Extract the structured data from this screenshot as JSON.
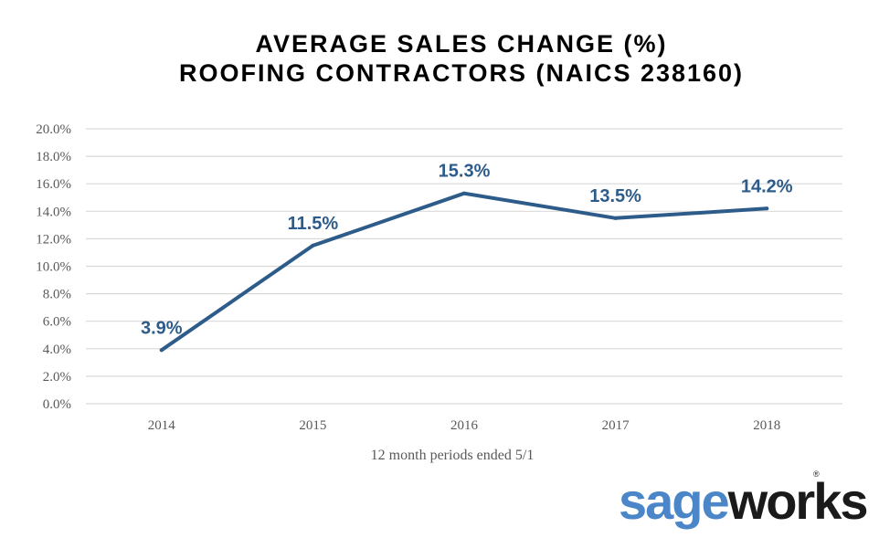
{
  "chart_data": {
    "type": "line",
    "title": [
      "AVERAGE SALES CHANGE (%)",
      "ROOFING CONTRACTORS (NAICS 238160)"
    ],
    "xlabel": "12 month  periods ended 5/1",
    "ylabel": "",
    "categories": [
      "2014",
      "2015",
      "2016",
      "2017",
      "2018"
    ],
    "series": [
      {
        "values": [
          3.9,
          11.5,
          15.3,
          13.5,
          14.2
        ],
        "data_labels": [
          "3.9%",
          "11.5%",
          "15.3%",
          "13.5%",
          "14.2%"
        ]
      }
    ],
    "y_ticks": [
      "0.0%",
      "2.0%",
      "4.0%",
      "6.0%",
      "8.0%",
      "10.0%",
      "12.0%",
      "14.0%",
      "16.0%",
      "18.0%",
      "20.0%"
    ],
    "ylim": [
      0,
      20
    ],
    "grid": true,
    "legend": "none",
    "colors": {
      "line": "#2E5C8A",
      "data_label": "#2E5C8A",
      "gridline": "#D9D9D9",
      "tick_text": "#595959",
      "title": "#000000"
    }
  },
  "logo": {
    "text_part1": "sage",
    "text_part2": "works",
    "mark": "®",
    "color_part1": "#4A86C8",
    "color_part2": "#1A1A1A"
  }
}
